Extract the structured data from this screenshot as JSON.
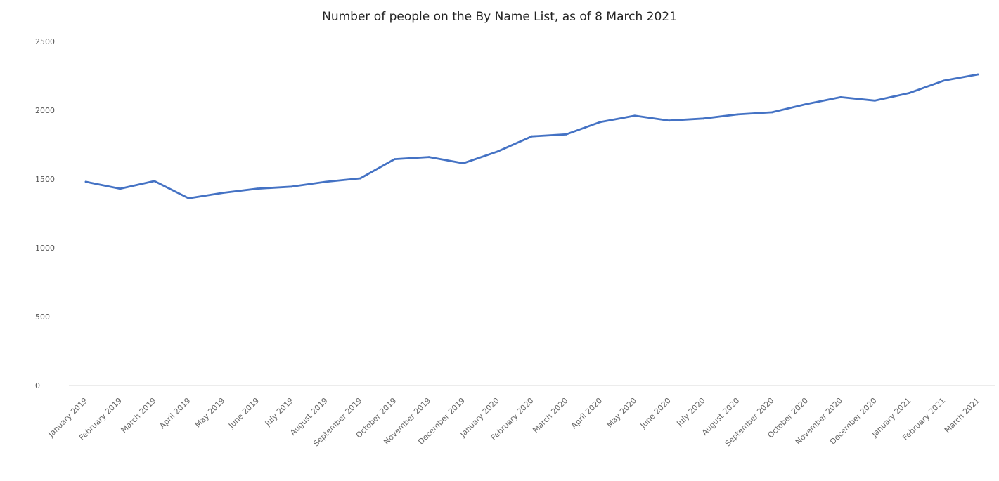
{
  "chart_data": {
    "type": "line",
    "title": "Number of people on the By Name List, as of 8 March 2021",
    "xlabel": "",
    "ylabel": "",
    "ylim": [
      0,
      2500
    ],
    "yticks": [
      0,
      500,
      1000,
      1500,
      2000,
      2500
    ],
    "grid": false,
    "legend": "none",
    "categories": [
      "January 2019",
      "February 2019",
      "March 2019",
      "April 2019",
      "May 2019",
      "June 2019",
      "July 2019",
      "August 2019",
      "September 2019",
      "October 2019",
      "November 2019",
      "December 2019",
      "January 2020",
      "February 2020",
      "March 2020",
      "April 2020",
      "May 2020",
      "June 2020",
      "July 2020",
      "August 2020",
      "September 2020",
      "October 2020",
      "November 2020",
      "December 2020",
      "January 2021",
      "February 2021",
      "March 2021"
    ],
    "series": [
      {
        "color": "#4472c4",
        "values": [
          1480,
          1430,
          1485,
          1360,
          1400,
          1430,
          1445,
          1480,
          1505,
          1645,
          1660,
          1615,
          1700,
          1810,
          1825,
          1915,
          1960,
          1925,
          1940,
          1970,
          1985,
          2045,
          2095,
          2070,
          2125,
          2215,
          2260
        ]
      }
    ]
  }
}
